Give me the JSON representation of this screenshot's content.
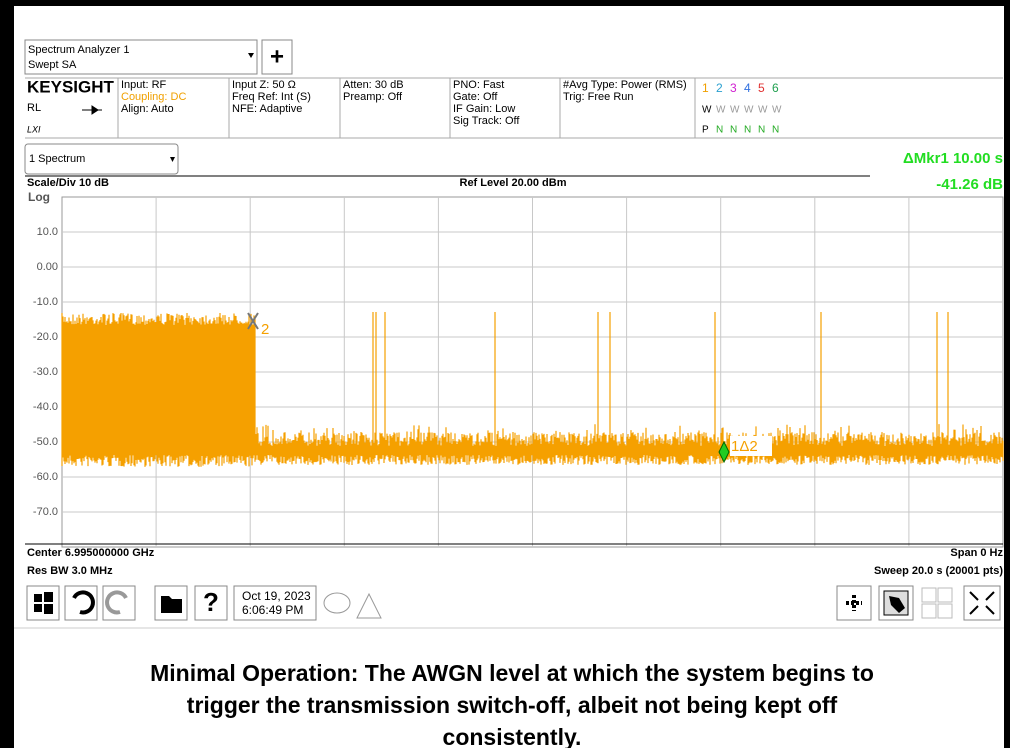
{
  "header": {
    "title": "Spectrum Analyzer 1",
    "mode": "Swept SA",
    "add": "+"
  },
  "info": {
    "brand": "KEYSIGHT",
    "rl": "RL",
    "lxi": "LXI",
    "col1": [
      "Input: RF",
      "Coupling: DC",
      "Align: Auto"
    ],
    "col2": [
      "Input Z: 50 Ω",
      "Freq Ref: Int (S)",
      "NFE: Adaptive"
    ],
    "col3": [
      "Atten: 30 dB",
      "Preamp: Off"
    ],
    "col4": [
      "PNO: Fast",
      "Gate: Off",
      "IF Gain: Low",
      "Sig Track: Off"
    ],
    "col5": [
      "#Avg Type: Power (RMS)",
      "Trig: Free Run"
    ],
    "traces": [
      "1",
      "2",
      "3",
      "4",
      "5",
      "6"
    ],
    "trace_types": [
      "W",
      "W",
      "W",
      "W",
      "W",
      "W"
    ],
    "detectors": [
      "P",
      "N",
      "N",
      "N",
      "N",
      "N"
    ]
  },
  "panel": {
    "name": "1 Spectrum",
    "marker_label": "ΔMkr1  10.00 s",
    "marker_value": "-41.26 dB",
    "scale": "Scale/Div 10 dB",
    "ref_level": "Ref Level 20.00 dBm",
    "log": "Log",
    "y_labels": [
      "10.0",
      "0.00",
      "-10.0",
      "-20.0",
      "-30.0",
      "-40.0",
      "-50.0",
      "-60.0",
      "-70.0"
    ],
    "marker2": "2",
    "marker1": "1Δ2"
  },
  "footer": {
    "center": "Center 6.995000000 GHz",
    "span": "Span 0 Hz",
    "res_bw": "Res BW 3.0 MHz",
    "sweep": "Sweep 20.0 s (20001 pts)"
  },
  "toolbar": {
    "date": "Oct 19, 2023",
    "time": "6:06:49 PM",
    "help": "?"
  },
  "caption": [
    "Minimal Operation: The AWGN level at which the system begins to",
    "trigger the transmission switch-off, albeit not being kept off",
    "consistently."
  ]
}
